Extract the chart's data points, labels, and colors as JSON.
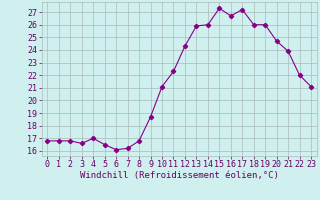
{
  "x": [
    0,
    1,
    2,
    3,
    4,
    5,
    6,
    7,
    8,
    9,
    10,
    11,
    12,
    13,
    14,
    15,
    16,
    17,
    18,
    19,
    20,
    21,
    22,
    23
  ],
  "y": [
    16.8,
    16.8,
    16.8,
    16.6,
    17.0,
    16.5,
    16.1,
    16.2,
    16.8,
    18.7,
    21.1,
    22.3,
    24.3,
    25.9,
    26.0,
    27.3,
    26.7,
    27.2,
    26.0,
    26.0,
    24.7,
    23.9,
    22.0,
    21.1
  ],
  "line_color": "#880088",
  "marker": "D",
  "marker_size": 2.2,
  "bg_color": "#cff0ee",
  "grid_color": "#aabbbb",
  "xlabel": "Windchill (Refroidissement éolien,°C)",
  "ylabel_ticks": [
    16,
    17,
    18,
    19,
    20,
    21,
    22,
    23,
    24,
    25,
    26,
    27
  ],
  "xlim": [
    -0.5,
    23.5
  ],
  "ylim": [
    15.6,
    27.8
  ],
  "tick_color": "#660066",
  "label_color": "#660066",
  "font_size": 6.0,
  "xlabel_fontsize": 6.5
}
